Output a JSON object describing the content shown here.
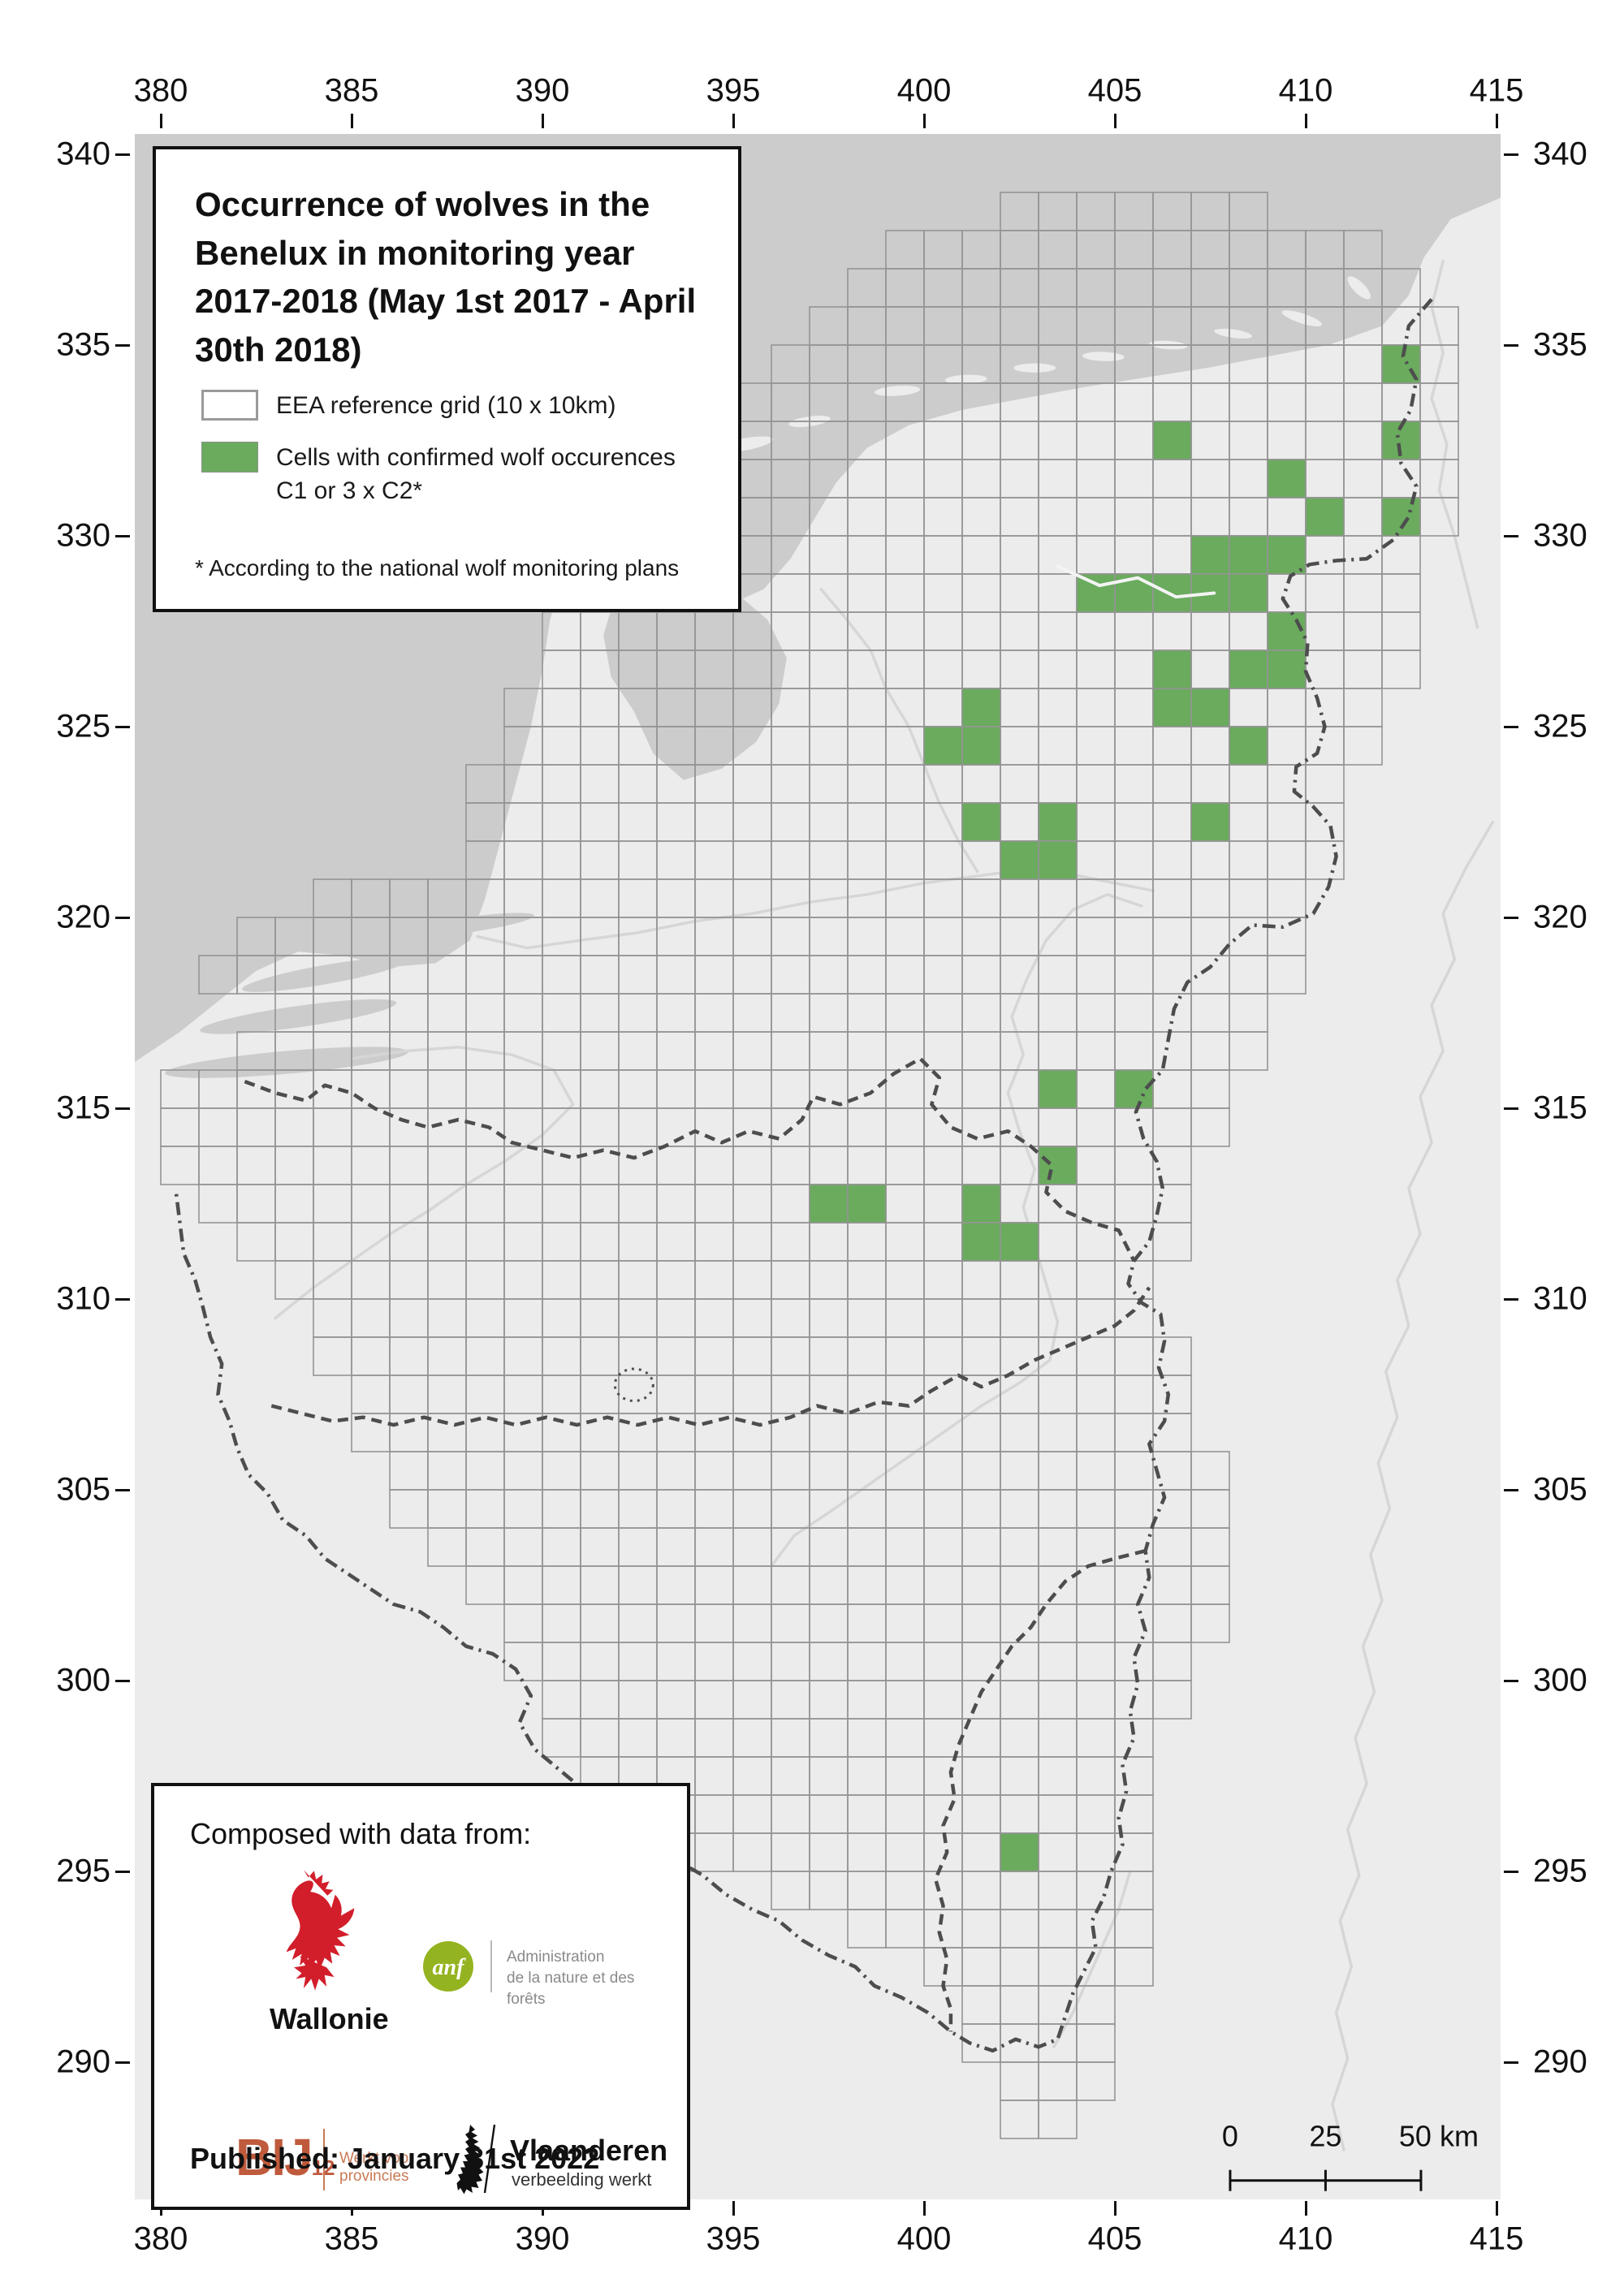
{
  "axes": {
    "x_ticks": [
      "380",
      "385",
      "390",
      "395",
      "400",
      "405",
      "410",
      "415"
    ],
    "y_ticks": [
      "340",
      "335",
      "330",
      "325",
      "320",
      "315",
      "310",
      "305",
      "300",
      "295",
      "290"
    ]
  },
  "legend": {
    "title": "Occurrence of wolves in the Benelux in monitoring year 2017-2018 (May 1st 2017 - April 30th 2018)",
    "item_grid": "EEA reference grid (10 x 10km)",
    "item_cells": "Cells with confirmed wolf occurences C1 or 3 x C2*",
    "footnote": "* According to the national wolf monitoring plans"
  },
  "sources": {
    "heading": "Composed with data from:",
    "published": "Published: January 31st 2022",
    "wallonie_name": "Wallonie",
    "anf_abbr": "anf",
    "anf_line1": "Administration",
    "anf_line2": "de la nature et des forêts",
    "bij12_big": "BIJ",
    "bij12_sub": "12",
    "bij12_tagline": "Werkt voor provincies",
    "vlaanderen_name": "Vlaanderen",
    "vlaanderen_tagline": "verbeelding werkt"
  },
  "scalebar": {
    "label_0": "0",
    "label_25": "25",
    "label_50": "50 km"
  },
  "map_data": {
    "colors": {
      "sea": "#cccccc",
      "land": "#ececec",
      "grid_line": "#949494",
      "wolf_cell": "#6aab5e",
      "border": "#4d4d4d",
      "river": "#d6d6d6"
    },
    "grid_rows": [
      [
        338,
        402,
        408
      ],
      [
        337,
        399,
        411
      ],
      [
        336,
        398,
        412
      ],
      [
        335,
        397,
        413
      ],
      [
        334,
        396,
        413
      ],
      [
        333,
        394,
        413
      ],
      [
        332,
        393,
        413
      ],
      [
        331,
        391,
        413
      ],
      [
        330,
        390,
        413
      ],
      [
        329,
        391,
        412
      ],
      [
        328,
        391,
        412
      ],
      [
        327,
        390,
        412
      ],
      [
        326,
        390,
        412
      ],
      [
        325,
        389,
        411
      ],
      [
        324,
        389,
        411
      ],
      [
        323,
        388,
        410
      ],
      [
        322,
        388,
        410
      ],
      [
        321,
        388,
        410
      ],
      [
        320,
        384,
        409
      ],
      [
        319,
        382,
        409
      ],
      [
        318,
        381,
        409
      ],
      [
        317,
        383,
        408
      ],
      [
        316,
        382,
        408
      ],
      [
        315,
        380,
        407
      ],
      [
        314,
        380,
        407
      ],
      [
        313,
        380,
        406
      ],
      [
        312,
        381,
        406
      ],
      [
        311,
        382,
        406
      ],
      [
        310,
        383,
        405
      ],
      [
        309,
        384,
        405
      ],
      [
        308,
        384,
        406
      ],
      [
        307,
        385,
        406
      ],
      [
        306,
        385,
        406
      ],
      [
        305,
        386,
        407
      ],
      [
        304,
        386,
        407
      ],
      [
        303,
        387,
        407
      ],
      [
        302,
        388,
        407
      ],
      [
        301,
        389,
        407
      ],
      [
        300,
        389,
        406
      ],
      [
        299,
        390,
        406
      ],
      [
        298,
        390,
        405
      ],
      [
        297,
        391,
        405
      ],
      [
        296,
        392,
        405
      ],
      [
        295,
        393,
        405
      ],
      [
        294,
        396,
        405
      ],
      [
        293,
        398,
        405
      ],
      [
        292,
        400,
        405
      ],
      [
        291,
        401,
        404
      ],
      [
        290,
        401,
        404
      ],
      [
        289,
        402,
        404
      ],
      [
        288,
        402,
        403
      ]
    ],
    "wolf_cells": [
      [
        412,
        334
      ],
      [
        406,
        332
      ],
      [
        412,
        332
      ],
      [
        409,
        331
      ],
      [
        410,
        330
      ],
      [
        412,
        330
      ],
      [
        407,
        329
      ],
      [
        408,
        329
      ],
      [
        409,
        329
      ],
      [
        404,
        328
      ],
      [
        405,
        328
      ],
      [
        406,
        328
      ],
      [
        407,
        328
      ],
      [
        408,
        328
      ],
      [
        409,
        327
      ],
      [
        406,
        326
      ],
      [
        408,
        326
      ],
      [
        409,
        326
      ],
      [
        401,
        325
      ],
      [
        406,
        325
      ],
      [
        407,
        325
      ],
      [
        400,
        324
      ],
      [
        401,
        324
      ],
      [
        408,
        324
      ],
      [
        401,
        322
      ],
      [
        403,
        322
      ],
      [
        407,
        322
      ],
      [
        402,
        321
      ],
      [
        403,
        321
      ],
      [
        403,
        315
      ],
      [
        405,
        315
      ],
      [
        403,
        313
      ],
      [
        397,
        312
      ],
      [
        398,
        312
      ],
      [
        401,
        312
      ],
      [
        401,
        311
      ],
      [
        402,
        311
      ],
      [
        402,
        295
      ]
    ]
  }
}
